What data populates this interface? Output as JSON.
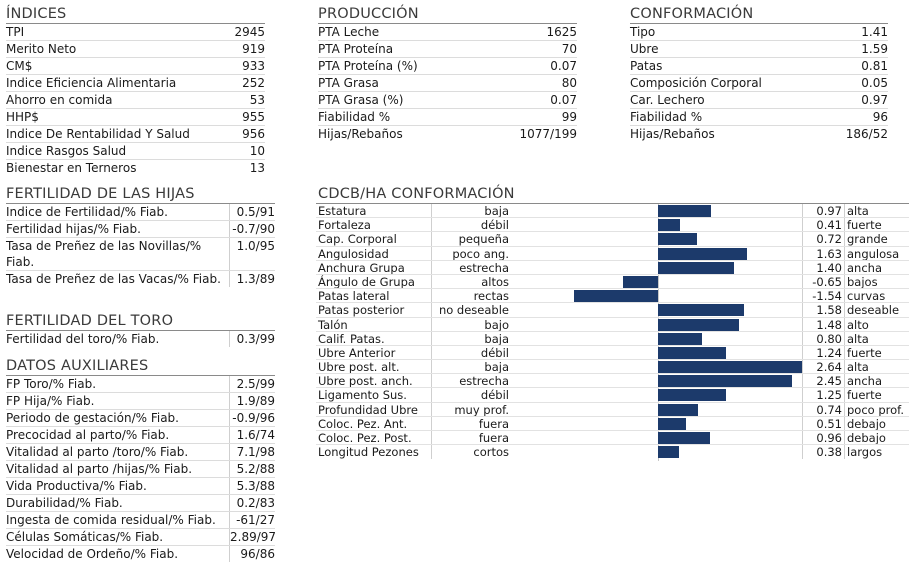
{
  "indices": {
    "title": "ÍNDICES",
    "rows": [
      {
        "label": "TPI",
        "value": "2945"
      },
      {
        "label": "Merito Neto",
        "value": "919"
      },
      {
        "label": "CM$",
        "value": "933"
      },
      {
        "label": "Indice Eficiencia Alimentaria",
        "value": "252"
      },
      {
        "label": "Ahorro en comida",
        "value": "53"
      },
      {
        "label": "HHP$",
        "value": "955"
      },
      {
        "label": "Indice De Rentabilidad Y Salud",
        "value": "956"
      },
      {
        "label": "Indice Rasgos Salud",
        "value": "10"
      },
      {
        "label": "Bienestar en Terneros",
        "value": "13"
      }
    ]
  },
  "produccion": {
    "title": "PRODUCCIÓN",
    "rows": [
      {
        "label": "PTA Leche",
        "value": "1625"
      },
      {
        "label": "PTA Proteína",
        "value": "70"
      },
      {
        "label": "PTA Proteína (%)",
        "value": "0.07"
      },
      {
        "label": "PTA Grasa",
        "value": "80"
      },
      {
        "label": "PTA Grasa (%)",
        "value": "0.07"
      },
      {
        "label": "Fiabilidad %",
        "value": "99"
      },
      {
        "label": "Hijas/Rebaños",
        "value": "1077/199"
      }
    ]
  },
  "conformacion": {
    "title": "CONFORMACIÓN",
    "rows": [
      {
        "label": "Tipo",
        "value": "1.41"
      },
      {
        "label": "Ubre",
        "value": "1.59"
      },
      {
        "label": "Patas",
        "value": "0.81"
      },
      {
        "label": "Composición Corporal",
        "value": "0.05"
      },
      {
        "label": "Car. Lechero",
        "value": "0.97"
      },
      {
        "label": "Fiabilidad %",
        "value": "96"
      },
      {
        "label": "Hijas/Rebaños",
        "value": "186/52"
      }
    ]
  },
  "fertilidad_hijas": {
    "title": "FERTILIDAD DE LAS HIJAS",
    "rows": [
      {
        "label": "Indice de Fertilidad/% Fiab.",
        "value": "0.5/91"
      },
      {
        "label": "Fertilidad hijas/% Fiab.",
        "value": "-0.7/90"
      },
      {
        "label": "Tasa de Preñez de las Novillas/% Fiab.",
        "value": "1.0/95"
      },
      {
        "label": "Tasa de Preñez de las Vacas/% Fiab.",
        "value": "1.3/89"
      }
    ]
  },
  "fertilidad_toro": {
    "title": "FERTILIDAD DEL TORO",
    "rows": [
      {
        "label": "Fertilidad del toro/% Fiab.",
        "value": "0.3/99"
      }
    ]
  },
  "datos_auxiliares": {
    "title": "DATOS AUXILIARES",
    "rows": [
      {
        "label": "FP Toro/% Fiab.",
        "value": "2.5/99"
      },
      {
        "label": "FP Hija/% Fiab.",
        "value": "1.9/89"
      },
      {
        "label": "Periodo de gestación/% Fiab.",
        "value": "-0.9/96"
      },
      {
        "label": "Precocidad al parto/% Fiab.",
        "value": "1.6/74"
      },
      {
        "label": "Vitalidad al parto /toro/% Fiab.",
        "value": "7.1/98"
      },
      {
        "label": "Vitalidad al parto /hijas/% Fiab.",
        "value": "5.2/88"
      },
      {
        "label": "Vida Productiva/% Fiab.",
        "value": "5.3/88"
      },
      {
        "label": "Durabilidad/% Fiab.",
        "value": "0.2/83"
      },
      {
        "label": "Ingesta de comida residual/% Fiab.",
        "value": "-61/27"
      },
      {
        "label": "Células Somáticas/% Fiab.",
        "value": "2.89/97"
      },
      {
        "label": "Velocidad de Ordeño/% Fiab.",
        "value": "96/86"
      }
    ]
  },
  "cdcb": {
    "title": "CDCB/HA CONFORMACIÓN",
    "bar_color": "#1c3a6b",
    "range_max": 2.64,
    "rows": [
      {
        "name": "Estatura",
        "low": "baja",
        "value": 0.97,
        "value_text": "0.97",
        "high": "alta"
      },
      {
        "name": "Fortaleza",
        "low": "débil",
        "value": 0.41,
        "value_text": "0.41",
        "high": "fuerte"
      },
      {
        "name": "Cap. Corporal",
        "low": "pequeña",
        "value": 0.72,
        "value_text": "0.72",
        "high": "grande"
      },
      {
        "name": "Angulosidad",
        "low": "poco ang.",
        "value": 1.63,
        "value_text": "1.63",
        "high": "angulosa"
      },
      {
        "name": "Anchura Grupa",
        "low": "estrecha",
        "value": 1.4,
        "value_text": "1.40",
        "high": "ancha"
      },
      {
        "name": "Ángulo de Grupa",
        "low": "altos",
        "value": -0.65,
        "value_text": "-0.65",
        "high": "bajos"
      },
      {
        "name": "Patas lateral",
        "low": "rectas",
        "value": -1.54,
        "value_text": "-1.54",
        "high": "curvas"
      },
      {
        "name": "Patas posterior",
        "low": "no deseable",
        "value": 1.58,
        "value_text": "1.58",
        "high": "deseable"
      },
      {
        "name": "Talón",
        "low": "bajo",
        "value": 1.48,
        "value_text": "1.48",
        "high": "alto"
      },
      {
        "name": "Calif. Patas.",
        "low": "baja",
        "value": 0.8,
        "value_text": "0.80",
        "high": "alta"
      },
      {
        "name": "Ubre Anterior",
        "low": "débil",
        "value": 1.24,
        "value_text": "1.24",
        "high": "fuerte"
      },
      {
        "name": "Ubre post. alt.",
        "low": "baja",
        "value": 2.64,
        "value_text": "2.64",
        "high": "alta"
      },
      {
        "name": "Ubre post. anch.",
        "low": "estrecha",
        "value": 2.45,
        "value_text": "2.45",
        "high": "ancha"
      },
      {
        "name": "Ligamento Sus.",
        "low": "débil",
        "value": 1.25,
        "value_text": "1.25",
        "high": "fuerte"
      },
      {
        "name": "Profundidad Ubre",
        "low": "muy prof.",
        "value": 0.74,
        "value_text": "0.74",
        "high": "poco prof."
      },
      {
        "name": "Coloc. Pez. Ant.",
        "low": "fuera",
        "value": 0.51,
        "value_text": "0.51",
        "high": "debajo"
      },
      {
        "name": "Coloc. Pez. Post.",
        "low": "fuera",
        "value": 0.96,
        "value_text": "0.96",
        "high": "debajo"
      },
      {
        "name": "Longitud Pezones",
        "low": "cortos",
        "value": 0.38,
        "value_text": "0.38",
        "high": "largos"
      }
    ]
  }
}
